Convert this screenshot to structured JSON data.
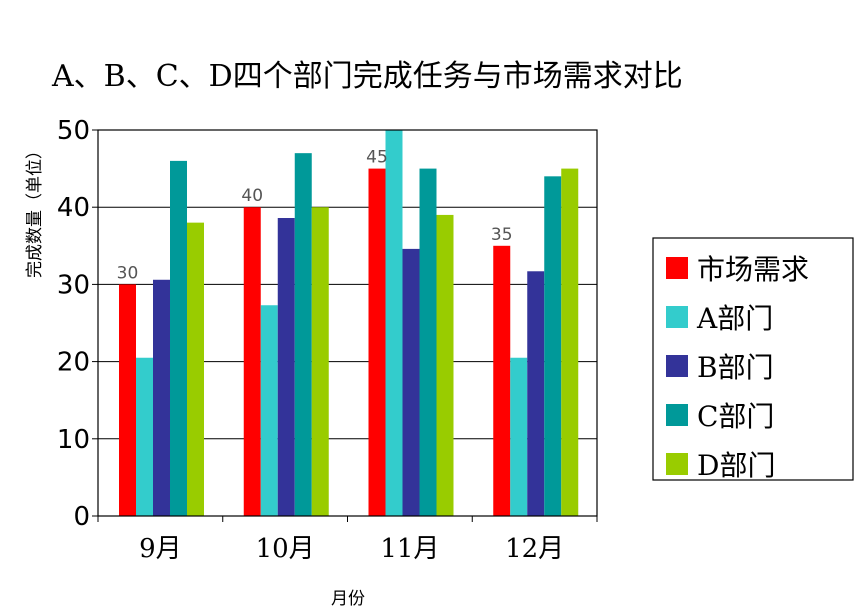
{
  "chart_data": {
    "type": "bar",
    "title": "A、B、C、D四个部门完成任务与市场需求对比",
    "xlabel": "月份",
    "ylabel": "完成数量（单位）",
    "categories": [
      "9月",
      "10月",
      "11月",
      "12月"
    ],
    "ylim": [
      0,
      50
    ],
    "yticks": [
      0,
      10,
      20,
      30,
      40,
      50
    ],
    "grid": true,
    "legend_position": "right",
    "series": [
      {
        "name": "市场需求",
        "color": "#ff0000",
        "values": [
          30,
          40,
          45,
          35
        ],
        "labels": [
          "30",
          "40",
          "45",
          "35"
        ]
      },
      {
        "name": "A部门",
        "color": "#33cccc",
        "values": [
          20.5,
          27.3,
          50,
          20.5
        ]
      },
      {
        "name": "B部门",
        "color": "#333399",
        "values": [
          30.6,
          38.6,
          34.6,
          31.7
        ]
      },
      {
        "name": "C部门",
        "color": "#009999",
        "values": [
          46,
          47,
          45,
          44
        ]
      },
      {
        "name": "D部门",
        "color": "#99cc00",
        "values": [
          38,
          40,
          39,
          45
        ]
      }
    ]
  }
}
